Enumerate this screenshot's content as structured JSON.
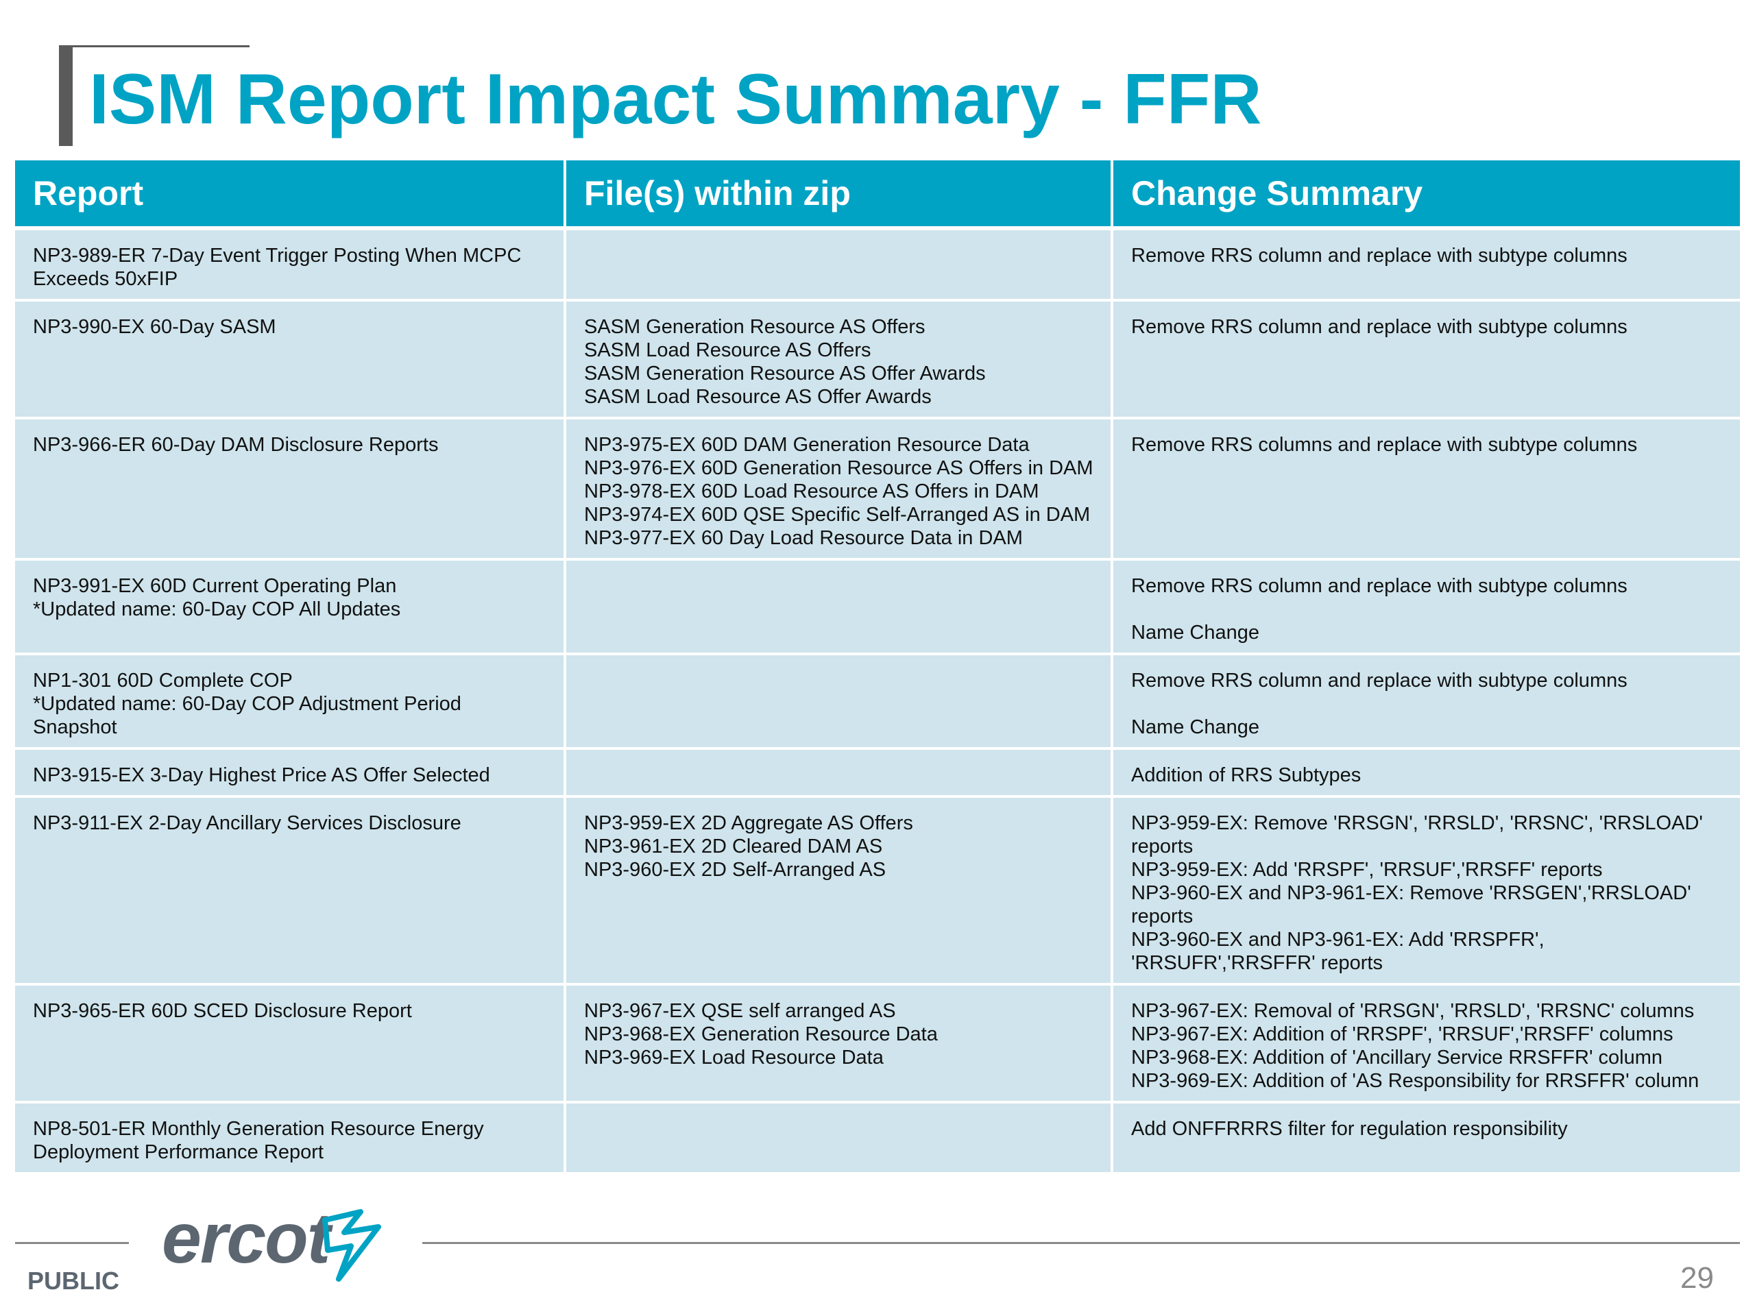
{
  "title": "ISM Report Impact Summary - FFR",
  "table": {
    "headers": [
      "Report",
      "File(s) within zip",
      "Change Summary"
    ],
    "rows": [
      {
        "report": [
          "NP3-989-ER 7-Day Event Trigger Posting When MCPC",
          "Exceeds 50xFIP"
        ],
        "files": [],
        "summary": [
          "Remove RRS column and replace with subtype columns"
        ]
      },
      {
        "report": [
          "NP3-990-EX 60-Day SASM"
        ],
        "files": [
          "SASM Generation Resource AS Offers",
          "SASM Load Resource AS Offers",
          "SASM Generation Resource AS Offer Awards",
          "SASM Load Resource AS Offer Awards"
        ],
        "summary": [
          "Remove RRS column and replace with subtype columns"
        ]
      },
      {
        "report": [
          "NP3-966-ER 60-Day DAM Disclosure Reports"
        ],
        "files": [
          "NP3-975-EX 60D DAM Generation Resource Data",
          "NP3-976-EX 60D Generation Resource AS Offers in DAM",
          "NP3-978-EX 60D Load Resource AS Offers in DAM",
          "NP3-974-EX 60D QSE Specific Self-Arranged AS in DAM",
          "NP3-977-EX 60 Day Load Resource Data in DAM"
        ],
        "summary": [
          "Remove RRS columns and replace with subtype columns"
        ]
      },
      {
        "report": [
          "NP3-991-EX 60D Current Operating Plan",
          "*Updated name: 60-Day COP All Updates"
        ],
        "files": [],
        "summary": [
          "Remove RRS column and replace with subtype columns",
          "",
          "Name Change"
        ]
      },
      {
        "report": [
          "NP1-301 60D Complete COP",
          "*Updated name: 60-Day COP Adjustment Period Snapshot"
        ],
        "files": [],
        "summary": [
          "Remove RRS column and replace with subtype columns",
          "",
          "Name Change"
        ]
      },
      {
        "report": [
          "NP3-915-EX 3-Day Highest Price AS Offer Selected"
        ],
        "files": [],
        "summary": [
          "Addition of RRS Subtypes"
        ]
      },
      {
        "report": [
          "NP3-911-EX 2-Day Ancillary Services Disclosure"
        ],
        "files": [
          "NP3-959-EX 2D Aggregate AS Offers",
          "NP3-961-EX 2D Cleared DAM AS",
          "NP3-960-EX 2D Self-Arranged AS"
        ],
        "summary": [
          "NP3-959-EX: Remove 'RRSGN', 'RRSLD', 'RRSNC', 'RRSLOAD'",
          "reports",
          "NP3-959-EX: Add 'RRSPF', 'RRSUF','RRSFF' reports",
          "NP3-960-EX and NP3-961-EX: Remove 'RRSGEN','RRSLOAD'",
          "reports",
          "NP3-960-EX and NP3-961-EX: Add 'RRSPFR',",
          "'RRSUFR','RRSFFR' reports"
        ]
      },
      {
        "report": [
          "NP3-965-ER 60D SCED Disclosure Report"
        ],
        "files": [
          "NP3-967-EX QSE self arranged AS",
          "NP3-968-EX Generation Resource Data",
          "NP3-969-EX Load Resource Data"
        ],
        "summary": [
          "NP3-967-EX: Removal of 'RRSGN', 'RRSLD', 'RRSNC' columns",
          "NP3-967-EX: Addition of 'RRSPF', 'RRSUF','RRSFF' columns",
          "NP3-968-EX: Addition of 'Ancillary Service RRSFFR' column",
          "NP3-969-EX: Addition of 'AS Responsibility for RRSFFR' column"
        ]
      },
      {
        "report": [
          "NP8-501-ER Monthly Generation Resource Energy",
          "Deployment Performance Report"
        ],
        "files": [],
        "summary": [
          "Add ONFFRRRS filter for regulation responsibility"
        ]
      }
    ]
  },
  "footer": {
    "logo_text": "ercot",
    "classification": "PUBLIC",
    "page_number": "29"
  },
  "colors": {
    "accent": "#00a3c4",
    "row_fill": "#cfe4ec",
    "logo_gray": "#5c6670"
  }
}
